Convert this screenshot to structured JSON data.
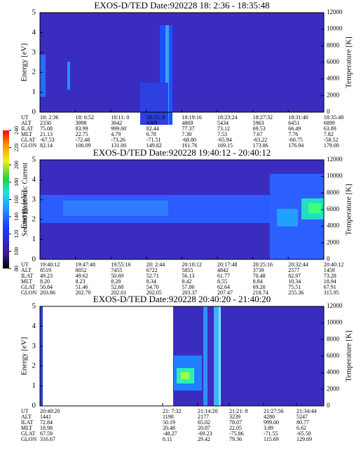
{
  "colorbar": {
    "label": "Second Harmonic Current",
    "lim": [
      80,
      240
    ],
    "ticks": [
      80,
      100,
      120,
      140,
      160,
      180,
      200,
      220,
      240
    ]
  },
  "panels": [
    {
      "title": "EXOS-D/TED   Date:920228  18: 2:36 - 18:35:48",
      "y_label": "Energy [eV]",
      "y2_label": "Temperature [K]",
      "ylim": [
        0,
        5
      ],
      "yticks": [
        0,
        1,
        2,
        3,
        4,
        5
      ],
      "y2lim": [
        0,
        12000
      ],
      "y2ticks": [
        0,
        2000,
        4000,
        6000,
        8000,
        10000,
        12000
      ],
      "table": {
        "row_labels": [
          "UT",
          "ALT",
          "ILAT",
          "MLT",
          "GLAT",
          "GLON"
        ],
        "rows": [
          [
            "18: 2:36",
            "18: 6:52",
            "18:11: 0",
            "18:15: 8",
            "18:19:16",
            "18:23:24",
            "18:27:32",
            "18:31:40",
            "18:35:48"
          ],
          [
            "2330",
            "3998",
            "3642",
            "4369",
            "4869",
            "5434",
            "5963",
            "6451",
            "6899"
          ],
          [
            "75.08",
            "83.99",
            "999.00",
            "82.44",
            "77.37",
            "73.12",
            "69.53",
            "66.49",
            "63.89"
          ],
          [
            "21.13",
            "22.75",
            "4.79",
            "6.78",
            "7.30",
            "7.53",
            "7.67",
            "7.76",
            "7.82"
          ],
          [
            "-67.53",
            "-72.48",
            "-73.26",
            "-71.51",
            "-68.80",
            "-65.94",
            "-63.22",
            "-60.75",
            "-58.52"
          ],
          [
            "82.14",
            "106.09",
            "131.00",
            "149.82",
            "161.76",
            "169.15",
            "173.86",
            "176.94",
            "179.00"
          ]
        ]
      }
    },
    {
      "title": "EXOS-D/TED   Date:920228  19:40:12 - 20:40:12",
      "y_label": "Energy [eV]",
      "y2_label": "Temperature [K]",
      "ylim": [
        0,
        5
      ],
      "yticks": [
        0,
        1,
        2,
        3,
        4,
        5
      ],
      "y2lim": [
        0,
        12000
      ],
      "y2ticks": [
        0,
        2000,
        4000,
        6000,
        8000,
        10000,
        12000
      ],
      "table": {
        "row_labels": [
          "UT",
          "ALT",
          "ILAT",
          "MLT",
          "GLAT",
          "GLON"
        ],
        "rows": [
          [
            "19:40:12",
            "19:47:48",
            "19:55:16",
            "20: 2:44",
            "20:10:12",
            "20:17:48",
            "20:25:16",
            "20:32:44",
            "20:40:12"
          ],
          [
            "8519",
            "8052",
            "7455",
            "6722",
            "5855",
            "4842",
            "3739",
            "2577",
            "1459"
          ],
          [
            "49.23",
            "49.62",
            "50.69",
            "52.71",
            "56.13",
            "61.77",
            "70.48",
            "82.97",
            "73.28"
          ],
          [
            "8.20",
            "8.23",
            "8.28",
            "8.34",
            "8.42",
            "8.55",
            "8.84",
            "10.34",
            "18.94"
          ],
          [
            "50.84",
            "51.46",
            "52.68",
            "54.70",
            "57.86",
            "62.64",
            "69.20",
            "75.51",
            "67.91"
          ],
          [
            "203.86",
            "202.70",
            "202.01",
            "202.05",
            "203.37",
            "207.47",
            "218.74",
            "255.36",
            "315.95"
          ]
        ]
      }
    },
    {
      "title": "EXOS-D/TED   Date:920228  20:40:20 - 21:40:20",
      "y_label": "Energy [eV]",
      "y2_label": "Temperature [K]",
      "ylim": [
        0,
        5
      ],
      "yticks": [
        0,
        1,
        2,
        3,
        4,
        5
      ],
      "y2lim": [
        0,
        12000
      ],
      "y2ticks": [
        0,
        2000,
        4000,
        6000,
        8000,
        10000,
        12000
      ],
      "table": {
        "row_labels": [
          "UT",
          "ALT",
          "ILAT",
          "MLT",
          "GLAT",
          "GLON"
        ],
        "rows": [
          [
            "20:40:20",
            "21: 7:32",
            "21:14:20",
            "21:21: 8",
            "21:27:56",
            "21:34:44"
          ],
          [
            "1441",
            "1198",
            "2177",
            "3239",
            "4280",
            "5247"
          ],
          [
            "72.84",
            "50.19",
            "65.02",
            "78.07",
            "999.00",
            "80.77"
          ],
          [
            "18.98",
            "20.48",
            "20.87",
            "22.05",
            "3.89",
            "6.62"
          ],
          [
            "67.59",
            "-48.27",
            "-69.23",
            "-75.86",
            "-71.55",
            "-65.50"
          ],
          [
            "316.67",
            "6.11",
            "29.42",
            "79.36",
            "115.69",
            "129.69"
          ]
        ]
      }
    }
  ]
}
